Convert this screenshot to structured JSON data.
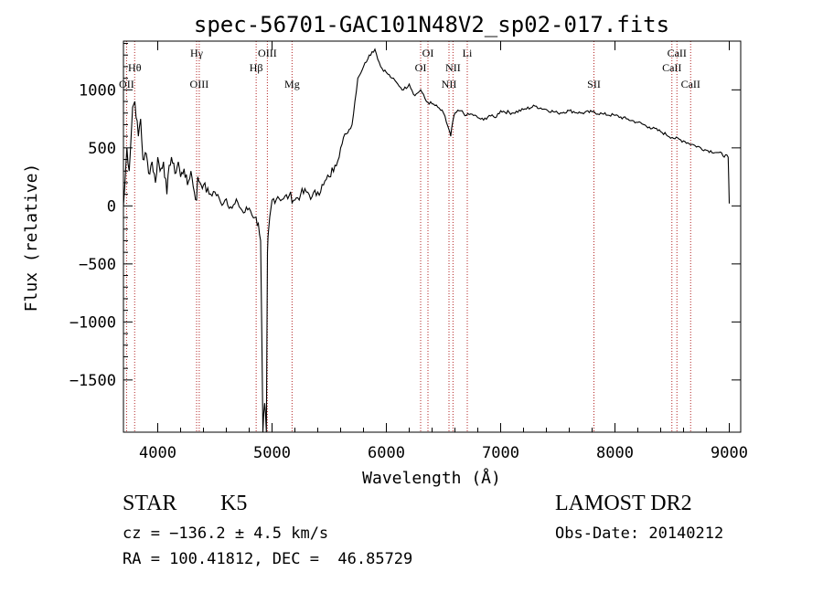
{
  "chart_data": {
    "type": "line",
    "title": "spec-56701-GAC101N48V2_sp02-017.fits",
    "xlabel": "Wavelength (Å)",
    "ylabel": "Flux (relative)",
    "xlim": [
      3700,
      9100
    ],
    "ylim": [
      -1950,
      1420
    ],
    "xticks": [
      4000,
      5000,
      6000,
      7000,
      8000,
      9000
    ],
    "xtick_labels": [
      "4000",
      "5000",
      "6000",
      "7000",
      "8000",
      "9000"
    ],
    "yticks": [
      -1500,
      -1000,
      -500,
      0,
      500,
      1000
    ],
    "ytick_labels": [
      "−1500",
      "−1000",
      "−500",
      "0",
      "500",
      "1000"
    ],
    "grid": false,
    "line_color": "#000000",
    "marker_color": "#b22222",
    "series": [
      {
        "x": [
          3700,
          3710,
          3730,
          3750,
          3780,
          3800,
          3830,
          3850,
          3870,
          3900,
          3920,
          3950,
          3980,
          4000,
          4020,
          4050,
          4080,
          4100,
          4120,
          4150,
          4180,
          4200,
          4230,
          4260,
          4290,
          4320,
          4340,
          4350,
          4370,
          4400,
          4450,
          4500,
          4550,
          4600,
          4650,
          4700,
          4750,
          4800,
          4850,
          4880,
          4900,
          4920,
          4935,
          4950,
          4960,
          4970,
          5000,
          5050,
          5100,
          5150,
          5200,
          5250,
          5300,
          5350,
          5400,
          5450,
          5500,
          5550,
          5600,
          5650,
          5700,
          5750,
          5800,
          5850,
          5900,
          5950,
          6000,
          6050,
          6100,
          6150,
          6200,
          6250,
          6300,
          6350,
          6400,
          6450,
          6500,
          6550,
          6563,
          6580,
          6600,
          6650,
          6700,
          6750,
          6800,
          6850,
          6900,
          6950,
          7000,
          7100,
          7200,
          7300,
          7400,
          7500,
          7600,
          7700,
          7800,
          7900,
          8000,
          8100,
          8200,
          8300,
          8400,
          8500,
          8600,
          8700,
          8800,
          8900,
          8990,
          9000
        ],
        "y": [
          0,
          150,
          500,
          300,
          850,
          900,
          600,
          750,
          400,
          450,
          280,
          380,
          200,
          420,
          300,
          380,
          100,
          350,
          420,
          280,
          380,
          250,
          320,
          180,
          300,
          120,
          50,
          250,
          200,
          180,
          100,
          120,
          30,
          60,
          -20,
          30,
          -60,
          -20,
          -100,
          -150,
          -300,
          -1950,
          -1700,
          -1950,
          -400,
          -200,
          50,
          80,
          60,
          90,
          50,
          100,
          120,
          80,
          120,
          180,
          250,
          350,
          500,
          620,
          700,
          1100,
          1200,
          1300,
          1350,
          1200,
          1150,
          1100,
          1050,
          1000,
          1050,
          950,
          1000,
          900,
          880,
          850,
          800,
          650,
          600,
          720,
          800,
          820,
          780,
          790,
          760,
          740,
          780,
          760,
          820,
          800,
          830,
          860,
          830,
          800,
          820,
          800,
          810,
          790,
          780,
          750,
          720,
          680,
          640,
          590,
          560,
          520,
          480,
          460,
          420,
          20
        ]
      }
    ],
    "line_markers": [
      {
        "wavelength": 3727,
        "label": "OII",
        "row": 3
      },
      {
        "wavelength": 3798,
        "label": "Hθ",
        "row": 2
      },
      {
        "wavelength": 4340,
        "label": "Hγ",
        "row": 1
      },
      {
        "wavelength": 4363,
        "label": "OIII",
        "row": 3
      },
      {
        "wavelength": 4861,
        "label": "Hβ",
        "row": 2
      },
      {
        "wavelength": 4959,
        "label": "OIII",
        "row": 1
      },
      {
        "wavelength": 5175,
        "label": "Mg",
        "row": 3
      },
      {
        "wavelength": 6300,
        "label": "OI",
        "row": 2
      },
      {
        "wavelength": 6364,
        "label": "OI",
        "row": 1
      },
      {
        "wavelength": 6548,
        "label": "NII",
        "row": 3
      },
      {
        "wavelength": 6583,
        "label": "NII",
        "row": 2
      },
      {
        "wavelength": 6708,
        "label": "Li",
        "row": 1
      },
      {
        "wavelength": 7816,
        "label": "SII",
        "row": 3
      },
      {
        "wavelength": 8498,
        "label": "CaII",
        "row": 2
      },
      {
        "wavelength": 8542,
        "label": "CaII",
        "row": 1
      },
      {
        "wavelength": 8662,
        "label": "CaII",
        "row": 3
      }
    ]
  },
  "info": {
    "object_class": "STAR",
    "subclass": "K5",
    "redshift_line": "cz = −136.2 ± 4.5 km/s",
    "coords_line": "RA = 100.41812, DEC =  46.85729",
    "survey": "LAMOST DR2",
    "obs_date_line": "Obs-Date: 20140212"
  }
}
